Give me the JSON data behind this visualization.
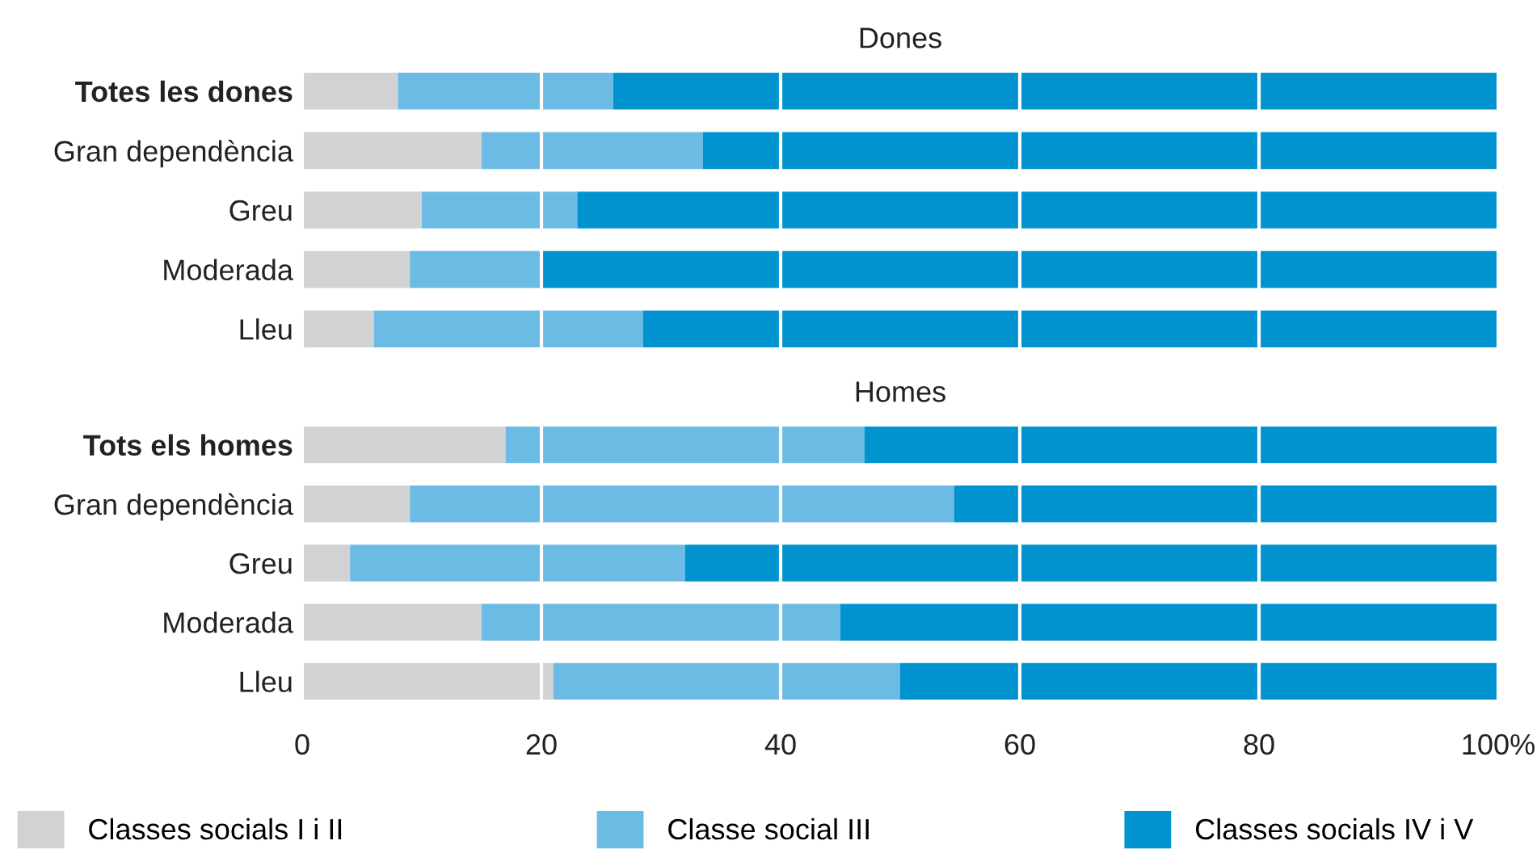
{
  "chart_data": [
    {
      "type": "bar",
      "orientation": "horizontal",
      "stacked": true,
      "title": "Dones",
      "categories": [
        "Totes les dones",
        "Gran dependència",
        "Greu",
        "Moderada",
        "Lleu"
      ],
      "series": [
        {
          "name": "Classes socials I i II",
          "color": "#d1d2d4",
          "values": [
            8,
            15,
            10,
            9,
            6
          ]
        },
        {
          "name": "Classe social III",
          "color": "#6bbbe4",
          "values": [
            18,
            18.5,
            13,
            11,
            22.5
          ]
        },
        {
          "name": "Classes socials IV i V",
          "color": "#0093d0",
          "values": [
            74,
            66.5,
            77,
            80,
            71.5
          ]
        }
      ],
      "xlim": [
        0,
        100
      ],
      "xticks": [
        0,
        20,
        40,
        60,
        80,
        100
      ],
      "tick_labels": "y",
      "grid": "x",
      "legend": "bottom"
    },
    {
      "type": "bar",
      "orientation": "horizontal",
      "stacked": true,
      "title": "Homes",
      "categories": [
        "Tots els homes",
        "Gran dependència",
        "Greu",
        "Moderada",
        "Lleu"
      ],
      "series": [
        {
          "color": "#d1d2d4",
          "values": [
            17,
            9,
            4,
            15,
            21
          ]
        },
        {
          "color": "#6bbbe4",
          "values": [
            30,
            45.5,
            28,
            30,
            29
          ]
        },
        {
          "color": "#0093d0",
          "values": [
            53,
            45.5,
            68,
            55,
            50
          ]
        }
      ],
      "xlim": [
        0,
        100
      ],
      "xticks": [
        0,
        20,
        40,
        60,
        80,
        {
          "value": 100,
          "label": "100%"
        }
      ],
      "grid": "x"
    }
  ]
}
